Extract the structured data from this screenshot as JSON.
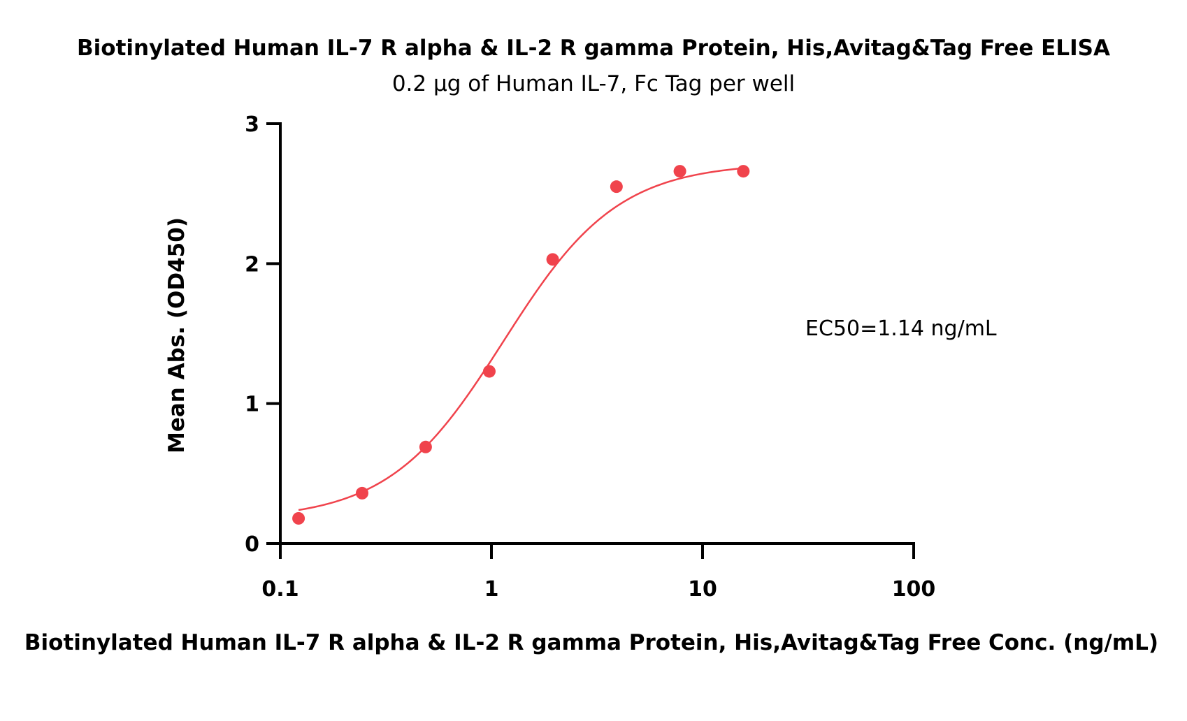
{
  "chart_data": {
    "type": "scatter",
    "title": "Biotinylated Human IL-7 R alpha & IL-2 R gamma Protein, His,Avitag&Tag Free ELISA",
    "subtitle": "0.2 μg of Human IL-7, Fc Tag per well",
    "xlabel": "Biotinylated Human IL-7 R alpha & IL-2 R gamma Protein, His,Avitag&Tag Free Conc. (ng/mL)",
    "ylabel": "Mean Abs. (OD450)",
    "xscale": "log",
    "xlim": [
      0.1,
      100
    ],
    "ylim": [
      0,
      3
    ],
    "x_ticks": [
      0.1,
      1,
      10,
      100
    ],
    "x_tick_labels": [
      "0.1",
      "1",
      "10",
      "100"
    ],
    "y_ticks": [
      0,
      1,
      2,
      3
    ],
    "y_tick_labels": [
      "0",
      "1",
      "2",
      "3"
    ],
    "grid": false,
    "annotation": "EC50=1.14 ng/mL",
    "colors": {
      "series": "#f0434c",
      "axis": "#000000"
    },
    "series": [
      {
        "points": [
          {
            "x": 0.122,
            "y": 0.18
          },
          {
            "x": 0.244,
            "y": 0.36
          },
          {
            "x": 0.488,
            "y": 0.69
          },
          {
            "x": 0.977,
            "y": 1.23
          },
          {
            "x": 1.95,
            "y": 2.03
          },
          {
            "x": 3.91,
            "y": 2.55
          },
          {
            "x": 7.81,
            "y": 2.66
          },
          {
            "x": 15.6,
            "y": 2.66
          }
        ],
        "fit": {
          "model": "4PL",
          "bottom": 0.17,
          "top": 2.72,
          "ec50": 1.14,
          "hill": 1.6
        }
      }
    ]
  }
}
